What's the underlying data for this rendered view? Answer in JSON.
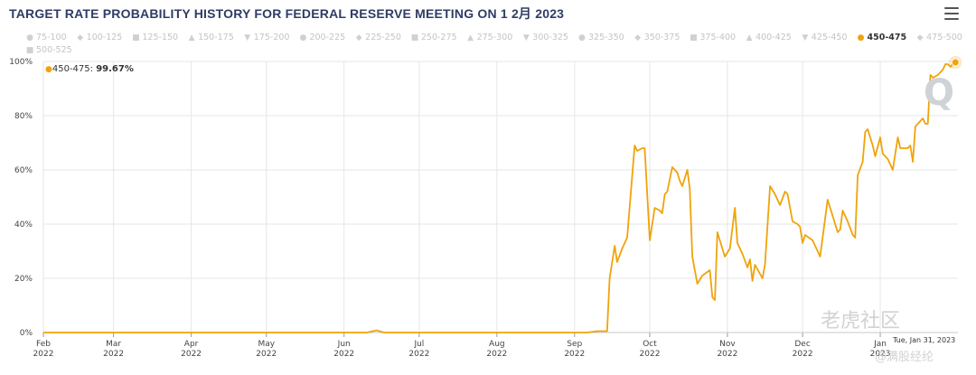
{
  "title": "TARGET RATE PROBABILITY HISTORY FOR FEDERAL RESERVE MEETING ON 1 2月 2023",
  "menu_icon": "hamburger-menu-icon",
  "legend": [
    {
      "label": "75-100",
      "symbol": "●",
      "active": false
    },
    {
      "label": "100-125",
      "symbol": "◆",
      "active": false
    },
    {
      "label": "125-150",
      "symbol": "■",
      "active": false
    },
    {
      "label": "150-175",
      "symbol": "▲",
      "active": false
    },
    {
      "label": "175-200",
      "symbol": "▼",
      "active": false
    },
    {
      "label": "200-225",
      "symbol": "●",
      "active": false
    },
    {
      "label": "225-250",
      "symbol": "◆",
      "active": false
    },
    {
      "label": "250-275",
      "symbol": "■",
      "active": false
    },
    {
      "label": "275-300",
      "symbol": "▲",
      "active": false
    },
    {
      "label": "300-325",
      "symbol": "▼",
      "active": false
    },
    {
      "label": "325-350",
      "symbol": "●",
      "active": false
    },
    {
      "label": "350-375",
      "symbol": "◆",
      "active": false
    },
    {
      "label": "375-400",
      "symbol": "■",
      "active": false
    },
    {
      "label": "400-425",
      "symbol": "▲",
      "active": false
    },
    {
      "label": "425-450",
      "symbol": "▼",
      "active": false
    },
    {
      "label": "450-475",
      "symbol": "●",
      "active": true
    },
    {
      "label": "475-500",
      "symbol": "◆",
      "active": false
    },
    {
      "label": "500-525",
      "symbol": "■",
      "active": false
    }
  ],
  "tooltip": {
    "series": "450-475",
    "sep": ": ",
    "value": "99.67%"
  },
  "date_tooltip": "Tue, Jan 31, 2023",
  "watermark": {
    "main": "老虎社区",
    "sub": "@满股经纶",
    "q": "Q"
  },
  "colors": {
    "series": "#f0a30a",
    "grid": "#e6e6e6",
    "axis": "#999999"
  },
  "chart_data": {
    "type": "line",
    "title": "TARGET RATE PROBABILITY HISTORY FOR FEDERAL RESERVE MEETING ON 1 2月 2023",
    "xlabel": "",
    "ylabel": "",
    "xlim": [
      "2022-02-01",
      "2023-02-01"
    ],
    "ylim": [
      0,
      100
    ],
    "y_ticks": [
      "0%",
      "20%",
      "40%",
      "60%",
      "80%",
      "100%"
    ],
    "y_tick_values": [
      0,
      20,
      40,
      60,
      80,
      100
    ],
    "x_ticks": [
      {
        "date": "2022-02-01",
        "label1": "Feb",
        "label2": "2022"
      },
      {
        "date": "2022-03-01",
        "label1": "Mar",
        "label2": "2022"
      },
      {
        "date": "2022-04-01",
        "label1": "Apr",
        "label2": "2022"
      },
      {
        "date": "2022-05-01",
        "label1": "May",
        "label2": "2022"
      },
      {
        "date": "2022-06-01",
        "label1": "Jun",
        "label2": "2022"
      },
      {
        "date": "2022-07-01",
        "label1": "Jul",
        "label2": "2022"
      },
      {
        "date": "2022-08-01",
        "label1": "Aug",
        "label2": "2022"
      },
      {
        "date": "2022-09-01",
        "label1": "Sep",
        "label2": "2022"
      },
      {
        "date": "2022-10-01",
        "label1": "Oct",
        "label2": "2022"
      },
      {
        "date": "2022-11-01",
        "label1": "Nov",
        "label2": "2022"
      },
      {
        "date": "2022-12-01",
        "label1": "Dec",
        "label2": "2022"
      },
      {
        "date": "2023-01-01",
        "label1": "Jan",
        "label2": "2023"
      }
    ],
    "grid": true,
    "legend_position": "top",
    "series": [
      {
        "name": "450-475",
        "points": [
          [
            "2022-02-01",
            0
          ],
          [
            "2022-06-10",
            0
          ],
          [
            "2022-06-14",
            0.8
          ],
          [
            "2022-06-17",
            0
          ],
          [
            "2022-09-06",
            0
          ],
          [
            "2022-09-10",
            0.5
          ],
          [
            "2022-09-14",
            0.5
          ],
          [
            "2022-09-15",
            20
          ],
          [
            "2022-09-17",
            32
          ],
          [
            "2022-09-18",
            26
          ],
          [
            "2022-09-20",
            31
          ],
          [
            "2022-09-22",
            35
          ],
          [
            "2022-09-25",
            69
          ],
          [
            "2022-09-26",
            67
          ],
          [
            "2022-09-28",
            68
          ],
          [
            "2022-09-29",
            68
          ],
          [
            "2022-10-01",
            34
          ],
          [
            "2022-10-03",
            46
          ],
          [
            "2022-10-05",
            45
          ],
          [
            "2022-10-06",
            44
          ],
          [
            "2022-10-07",
            51
          ],
          [
            "2022-10-08",
            52
          ],
          [
            "2022-10-10",
            61
          ],
          [
            "2022-10-12",
            59
          ],
          [
            "2022-10-13",
            56
          ],
          [
            "2022-10-14",
            54
          ],
          [
            "2022-10-16",
            60
          ],
          [
            "2022-10-17",
            53
          ],
          [
            "2022-10-18",
            28
          ],
          [
            "2022-10-20",
            18
          ],
          [
            "2022-10-22",
            21
          ],
          [
            "2022-10-25",
            23
          ],
          [
            "2022-10-26",
            13
          ],
          [
            "2022-10-27",
            12
          ],
          [
            "2022-10-28",
            37
          ],
          [
            "2022-10-31",
            28
          ],
          [
            "2022-11-02",
            31
          ],
          [
            "2022-11-04",
            46
          ],
          [
            "2022-11-05",
            33
          ],
          [
            "2022-11-07",
            29
          ],
          [
            "2022-11-09",
            24
          ],
          [
            "2022-11-10",
            27
          ],
          [
            "2022-11-11",
            19
          ],
          [
            "2022-11-12",
            25
          ],
          [
            "2022-11-15",
            20
          ],
          [
            "2022-11-16",
            25
          ],
          [
            "2022-11-18",
            54
          ],
          [
            "2022-11-20",
            51
          ],
          [
            "2022-11-22",
            47
          ],
          [
            "2022-11-24",
            52
          ],
          [
            "2022-11-25",
            51
          ],
          [
            "2022-11-27",
            41
          ],
          [
            "2022-11-29",
            40
          ],
          [
            "2022-11-30",
            39
          ],
          [
            "2022-12-01",
            33
          ],
          [
            "2022-12-02",
            36
          ],
          [
            "2022-12-05",
            34
          ],
          [
            "2022-12-06",
            32
          ],
          [
            "2022-12-08",
            28
          ],
          [
            "2022-12-11",
            49
          ],
          [
            "2022-12-13",
            43
          ],
          [
            "2022-12-15",
            37
          ],
          [
            "2022-12-16",
            38
          ],
          [
            "2022-12-17",
            45
          ],
          [
            "2022-12-19",
            41
          ],
          [
            "2022-12-21",
            36
          ],
          [
            "2022-12-22",
            35
          ],
          [
            "2022-12-23",
            58
          ],
          [
            "2022-12-25",
            63
          ],
          [
            "2022-12-26",
            74
          ],
          [
            "2022-12-27",
            75
          ],
          [
            "2022-12-29",
            69
          ],
          [
            "2022-12-30",
            65
          ],
          [
            "2023-01-01",
            72
          ],
          [
            "2023-01-02",
            66
          ],
          [
            "2023-01-04",
            64
          ],
          [
            "2023-01-06",
            60
          ],
          [
            "2023-01-08",
            72
          ],
          [
            "2023-01-09",
            68
          ],
          [
            "2023-01-12",
            68
          ],
          [
            "2023-01-13",
            69
          ],
          [
            "2023-01-14",
            63
          ],
          [
            "2023-01-15",
            76
          ],
          [
            "2023-01-16",
            77
          ],
          [
            "2023-01-17",
            78
          ],
          [
            "2023-01-18",
            79
          ],
          [
            "2023-01-19",
            77
          ],
          [
            "2023-01-20",
            77
          ],
          [
            "2023-01-21",
            95
          ],
          [
            "2023-01-22",
            94
          ],
          [
            "2023-01-24",
            95
          ],
          [
            "2023-01-25",
            96
          ],
          [
            "2023-01-26",
            97
          ],
          [
            "2023-01-27",
            99
          ],
          [
            "2023-01-28",
            99
          ],
          [
            "2023-01-29",
            98
          ],
          [
            "2023-01-30",
            99
          ],
          [
            "2023-01-31",
            99.67
          ]
        ]
      }
    ]
  }
}
